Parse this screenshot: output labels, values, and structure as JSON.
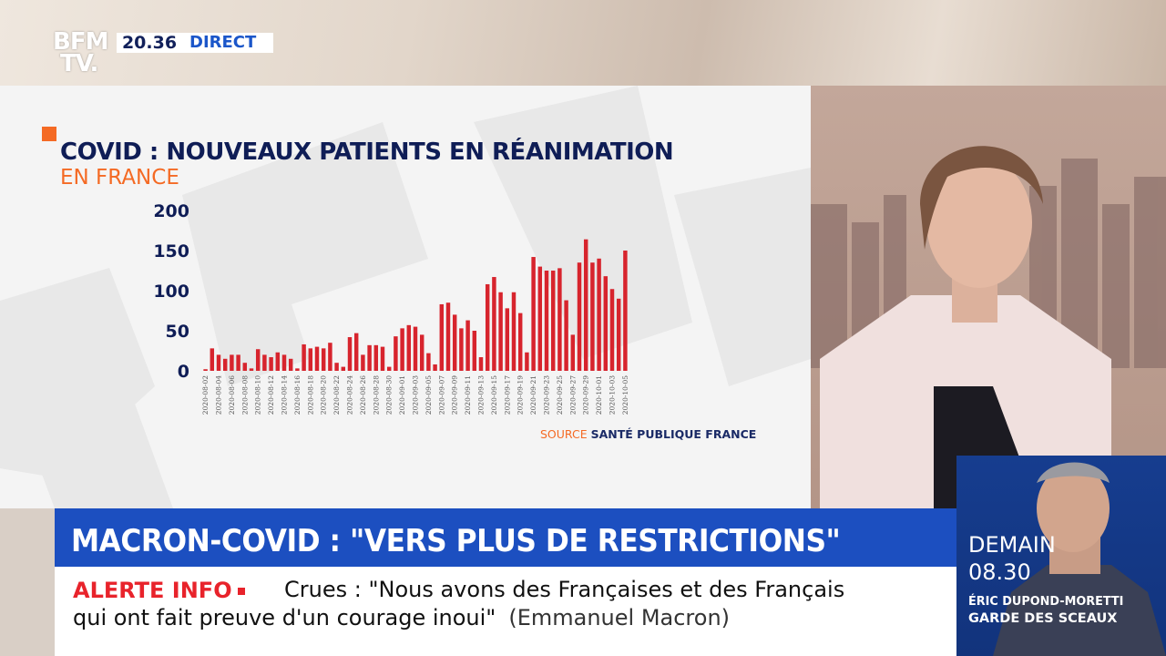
{
  "channel": {
    "logo_line1": "BFM",
    "logo_line2": "TV.",
    "time": "20.36",
    "live_label": "DIRECT"
  },
  "chart_data": {
    "type": "bar",
    "title": "COVID : NOUVEAUX PATIENTS EN RÉANIMATION",
    "subtitle": "EN FRANCE",
    "source_label": "SOURCE",
    "source_value": "SANTÉ PUBLIQUE FRANCE",
    "ylim": [
      0,
      200
    ],
    "yticks": [
      "0",
      "50",
      "100",
      "150",
      "200"
    ],
    "grid": false,
    "color": "#d7242d",
    "tick_labels": [
      "2020-08-02",
      "2020-08-04",
      "2020-08-06",
      "2020-08-08",
      "2020-08-10",
      "2020-08-12",
      "2020-08-14",
      "2020-08-16",
      "2020-08-18",
      "2020-08-20",
      "2020-08-22",
      "2020-08-24",
      "2020-08-26",
      "2020-08-28",
      "2020-08-30",
      "2020-09-01",
      "2020-09-03",
      "2020-09-05",
      "2020-09-07",
      "2020-09-09",
      "2020-09-11",
      "2020-09-13",
      "2020-09-15",
      "2020-09-17",
      "2020-09-19",
      "2020-09-21",
      "2020-09-23",
      "2020-09-25",
      "2020-09-27",
      "2020-09-29",
      "2020-10-01",
      "2020-10-03",
      "2020-10-05"
    ],
    "categories": [
      "2020-08-02",
      "2020-08-03",
      "2020-08-04",
      "2020-08-05",
      "2020-08-06",
      "2020-08-07",
      "2020-08-08",
      "2020-08-09",
      "2020-08-10",
      "2020-08-11",
      "2020-08-12",
      "2020-08-13",
      "2020-08-14",
      "2020-08-15",
      "2020-08-16",
      "2020-08-17",
      "2020-08-18",
      "2020-08-19",
      "2020-08-20",
      "2020-08-21",
      "2020-08-22",
      "2020-08-23",
      "2020-08-24",
      "2020-08-25",
      "2020-08-26",
      "2020-08-27",
      "2020-08-28",
      "2020-08-29",
      "2020-08-30",
      "2020-08-31",
      "2020-09-01",
      "2020-09-02",
      "2020-09-03",
      "2020-09-04",
      "2020-09-05",
      "2020-09-06",
      "2020-09-07",
      "2020-09-08",
      "2020-09-09",
      "2020-09-10",
      "2020-09-11",
      "2020-09-12",
      "2020-09-13",
      "2020-09-14",
      "2020-09-15",
      "2020-09-16",
      "2020-09-17",
      "2020-09-18",
      "2020-09-19",
      "2020-09-20",
      "2020-09-21",
      "2020-09-22",
      "2020-09-23",
      "2020-09-24",
      "2020-09-25",
      "2020-09-26",
      "2020-09-27",
      "2020-09-28",
      "2020-09-29",
      "2020-09-30",
      "2020-10-01",
      "2020-10-02",
      "2020-10-03",
      "2020-10-04",
      "2020-10-05"
    ],
    "values": [
      2,
      28,
      20,
      15,
      20,
      20,
      10,
      3,
      27,
      20,
      17,
      23,
      20,
      15,
      3,
      33,
      28,
      30,
      28,
      35,
      10,
      5,
      42,
      47,
      20,
      32,
      32,
      30,
      5,
      43,
      53,
      57,
      55,
      45,
      22,
      8,
      83,
      85,
      70,
      53,
      63,
      50,
      17,
      108,
      117,
      98,
      78,
      98,
      72,
      23,
      142,
      130,
      125,
      125,
      128,
      88,
      45,
      135,
      164,
      135,
      140,
      118,
      102,
      90,
      150
    ]
  },
  "headline": "MACRON-COVID : \"VERS PLUS DE RESTRICTIONS\"",
  "alert": {
    "label": "ALERTE INFO",
    "text_line1": "Crues : \"Nous avons des Françaises et des Français",
    "text_line2": "qui ont fait preuve d'un courage inoui\"",
    "author": "(Emmanuel Macron)"
  },
  "next_guest": {
    "day": "DEMAIN",
    "time": "08.30",
    "name": "ÉRIC DUPOND-MORETTI",
    "role": "GARDE DES SCEAUX"
  }
}
